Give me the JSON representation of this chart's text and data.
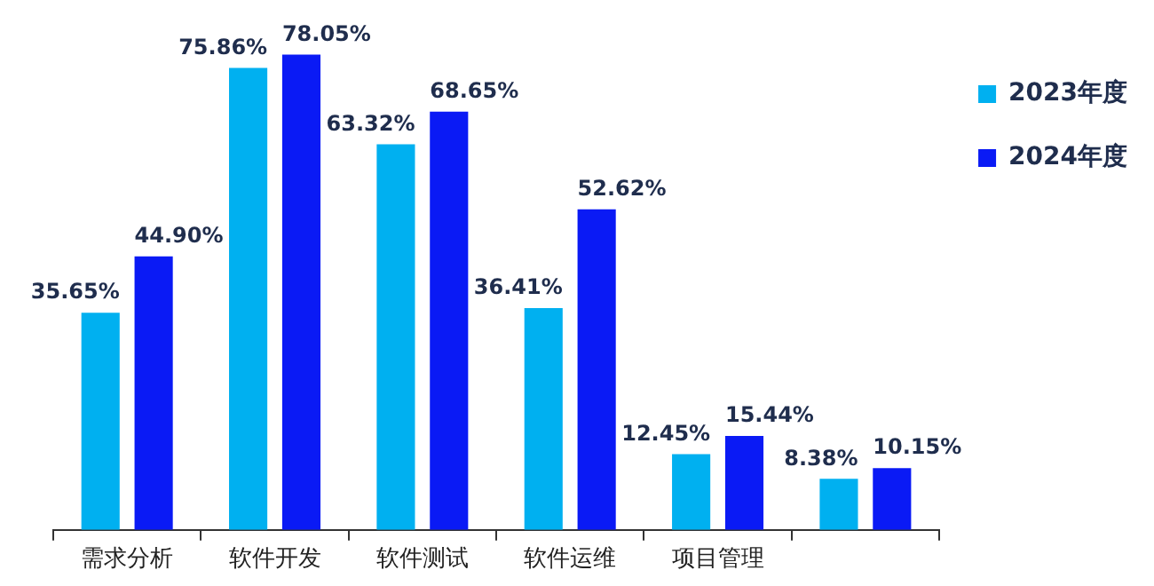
{
  "chart_data": {
    "type": "bar",
    "categories": [
      "需求分析",
      "软件开发",
      "软件测试",
      "软件运维",
      "项目管理",
      null
    ],
    "series": [
      {
        "name": "2023年度",
        "color": "#00b0f0",
        "values": [
          35.65,
          75.86,
          63.32,
          36.41,
          12.45,
          8.38
        ],
        "value_labels": [
          "35.65%",
          "75.86%",
          "63.32%",
          "36.41%",
          "12.45%",
          "8.38%"
        ]
      },
      {
        "name": "2024年度",
        "color": "#0a1af5",
        "values": [
          44.9,
          78.05,
          68.65,
          52.62,
          15.44,
          10.15
        ],
        "value_labels": [
          "44.90%",
          "78.05%",
          "68.65%",
          "52.62%",
          "15.44%",
          "10.15%"
        ]
      }
    ],
    "tick_labels": "x",
    "grid": false,
    "legend": "top right"
  }
}
